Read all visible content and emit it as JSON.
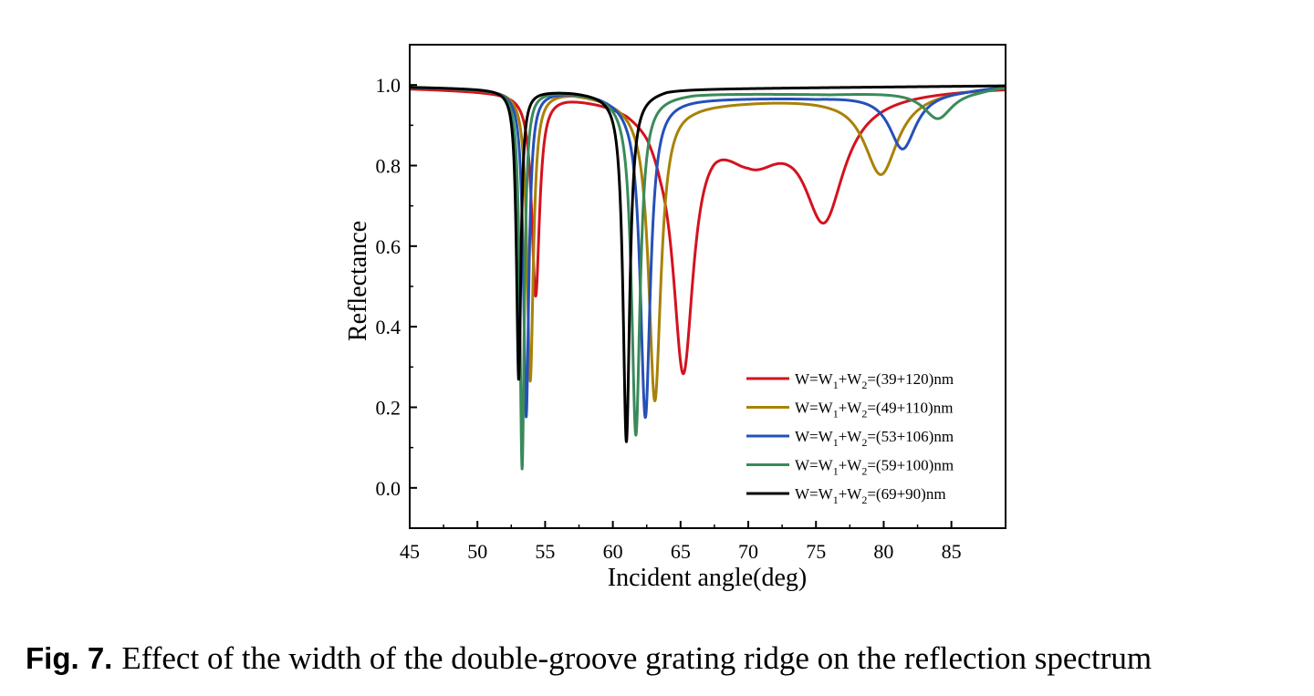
{
  "caption": {
    "label": "Fig. 7.",
    "text": "Effect of the width of the double-groove grating ridge on the reflection spectrum"
  },
  "chart_data": {
    "type": "line",
    "title": "",
    "xlabel": "Incident angle(deg)",
    "ylabel": "Reflectance",
    "xlim": [
      45,
      89
    ],
    "ylim": [
      -0.1,
      1.1
    ],
    "xticks": [
      45,
      50,
      55,
      60,
      65,
      70,
      75,
      80,
      85
    ],
    "yticks": [
      0.0,
      0.2,
      0.4,
      0.6,
      0.8,
      1.0
    ],
    "ytick_labels": [
      "0.0",
      "0.2",
      "0.4",
      "0.6",
      "0.8",
      "1.0"
    ],
    "grid": false,
    "legend": "lower-right",
    "series": [
      {
        "name": "W=W1+W2=(39+120)nm",
        "name_parts": [
          "W=W",
          "1",
          "+W",
          "2",
          "=(39+120)nm"
        ],
        "color": "#d4121f",
        "baseline": [
          [
            45,
            0.995
          ],
          [
            52,
            0.99
          ],
          [
            56.5,
            0.985
          ],
          [
            59,
            0.978
          ],
          [
            61,
            0.97
          ],
          [
            62.5,
            0.955
          ],
          [
            63.5,
            0.93
          ],
          [
            67.5,
            0.985
          ],
          [
            70,
            1.0
          ],
          [
            73,
            0.99
          ],
          [
            78,
            0.992
          ],
          [
            82,
            0.995
          ],
          [
            89,
            0.998
          ]
        ],
        "dips": [
          {
            "x0": 54.3,
            "depth": 0.5,
            "width": 0.35
          },
          {
            "x0": 65.2,
            "depth": 0.62,
            "width": 0.9
          },
          {
            "x0": 70.3,
            "depth": 0.16,
            "width": 3.0
          },
          {
            "x0": 75.6,
            "depth": 0.29,
            "width": 1.8
          }
        ]
      },
      {
        "name": "W=W1+W2=(49+110)nm",
        "name_parts": [
          "W=W",
          "1",
          "+W",
          "2",
          "=(49+110)nm"
        ],
        "color": "#a88207",
        "baseline": [
          [
            45,
            0.995
          ],
          [
            52,
            0.99
          ],
          [
            57,
            0.985
          ],
          [
            59,
            0.975
          ],
          [
            61.5,
            0.96
          ],
          [
            66,
            0.955
          ],
          [
            72,
            0.965
          ],
          [
            76,
            0.97
          ],
          [
            85,
            0.99
          ],
          [
            89,
            0.998
          ]
        ],
        "dips": [
          {
            "x0": 53.9,
            "depth": 0.72,
            "width": 0.28
          },
          {
            "x0": 63.1,
            "depth": 0.74,
            "width": 0.55
          },
          {
            "x0": 79.8,
            "depth": 0.2,
            "width": 1.5
          }
        ]
      },
      {
        "name": "W=W1+W2=(53+106)nm",
        "name_parts": [
          "W=W",
          "1",
          "+W",
          "2",
          "=(53+106)nm"
        ],
        "color": "#2550b8",
        "baseline": [
          [
            45,
            0.995
          ],
          [
            52,
            0.99
          ],
          [
            57,
            0.985
          ],
          [
            59,
            0.978
          ],
          [
            61,
            0.965
          ],
          [
            66,
            0.968
          ],
          [
            75,
            0.97
          ],
          [
            86,
            0.99
          ],
          [
            89,
            0.998
          ]
        ],
        "dips": [
          {
            "x0": 53.6,
            "depth": 0.81,
            "width": 0.24
          },
          {
            "x0": 62.4,
            "depth": 0.79,
            "width": 0.45
          },
          {
            "x0": 81.4,
            "depth": 0.14,
            "width": 1.2
          }
        ]
      },
      {
        "name": "W=W1+W2=(59+100)nm",
        "name_parts": [
          "W=W",
          "1",
          "+W",
          "2",
          "=(59+100)nm"
        ],
        "color": "#3a8a5a",
        "baseline": [
          [
            45,
            0.995
          ],
          [
            52,
            0.99
          ],
          [
            57,
            0.985
          ],
          [
            59,
            0.978
          ],
          [
            61,
            0.97
          ],
          [
            66,
            0.98
          ],
          [
            76,
            0.978
          ],
          [
            87,
            0.99
          ],
          [
            89,
            0.998
          ]
        ],
        "dips": [
          {
            "x0": 53.3,
            "depth": 0.94,
            "width": 0.2
          },
          {
            "x0": 61.7,
            "depth": 0.84,
            "width": 0.38
          },
          {
            "x0": 84.0,
            "depth": 0.07,
            "width": 1.3
          }
        ]
      },
      {
        "name": "W=W1+W2=(69+90)nm",
        "name_parts": [
          "W=W",
          "1",
          "+W",
          "2",
          "=(69+90)nm"
        ],
        "color": "#000000",
        "baseline": [
          [
            45,
            0.995
          ],
          [
            52,
            0.99
          ],
          [
            57,
            0.985
          ],
          [
            59,
            0.98
          ],
          [
            61,
            0.975
          ],
          [
            64,
            0.99
          ],
          [
            89,
            0.998
          ]
        ],
        "dips": [
          {
            "x0": 53.05,
            "depth": 0.72,
            "width": 0.2
          },
          {
            "x0": 61.0,
            "depth": 0.86,
            "width": 0.3
          }
        ]
      }
    ]
  }
}
